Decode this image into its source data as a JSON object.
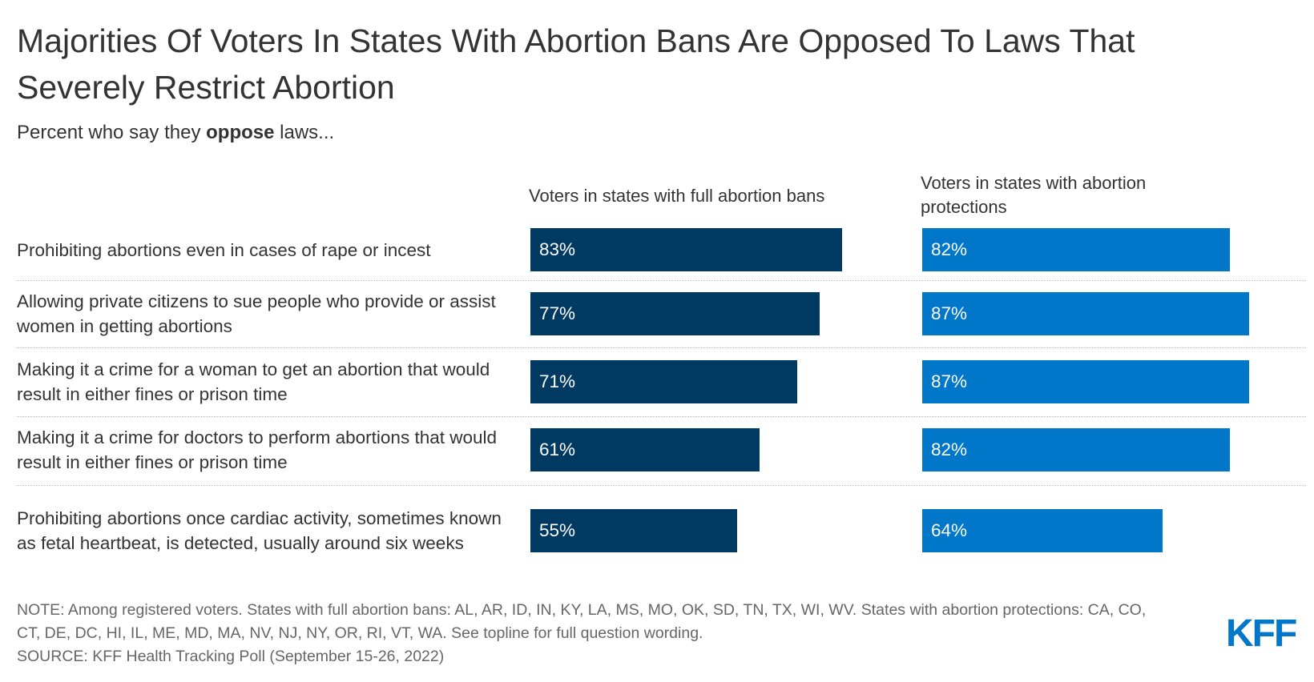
{
  "header": {
    "title": "Majorities Of Voters In States With Abortion Bans Are Opposed To Laws That Severely Restrict Abortion",
    "subtitle_pre": "Percent who say they ",
    "subtitle_bold": "oppose",
    "subtitle_post": " laws..."
  },
  "chart_data": {
    "type": "bar",
    "orientation": "horizontal",
    "categories": [
      "Prohibiting abortions even in cases of rape or incest",
      "Allowing private citizens to sue people who provide or assist women in getting abortions",
      "Making it a crime for a woman to get an abortion that would result in either fines or prison time",
      "Making it a crime for doctors to perform abortions that would result in either fines or prison time",
      "Prohibiting abortions once cardiac activity, sometimes known as fetal heartbeat, is detected, usually around six weeks"
    ],
    "series": [
      {
        "name": "Voters in states with full abortion bans",
        "color": "#003a63",
        "values": [
          83,
          77,
          71,
          61,
          55
        ],
        "labels": [
          "83%",
          "77%",
          "71%",
          "61%",
          "55%"
        ]
      },
      {
        "name": "Voters in states with abortion protections",
        "color": "#0077c8",
        "values": [
          82,
          87,
          87,
          82,
          64
        ],
        "labels": [
          "82%",
          "87%",
          "87%",
          "82%",
          "64%"
        ]
      }
    ],
    "xlim": [
      0,
      100
    ],
    "grid": false,
    "legend": "column headers above bars"
  },
  "footer": {
    "note": "NOTE: Among registered voters. States with full abortion bans: AL, AR, ID, IN, KY, LA, MS, MO, OK, SD, TN, TX, WI, WV. States with abortion protections: CA, CO, CT, DE, DC, HI, IL, ME, MD, MA, NV, NJ, NY, OR, RI, VT, WA. See topline for full question wording.",
    "source": "SOURCE: KFF Health Tracking Poll (September 15-26, 2022)",
    "logo": "KFF"
  }
}
